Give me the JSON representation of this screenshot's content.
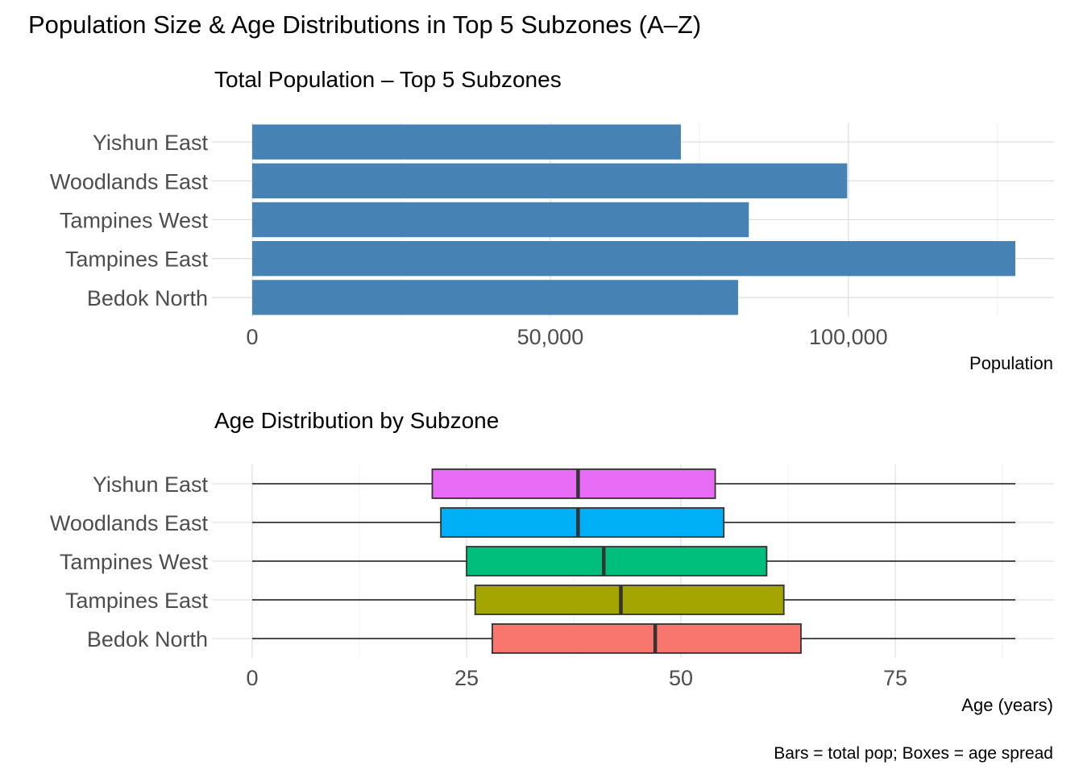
{
  "figure": {
    "title": "Population Size & Age Distributions in Top 5 Subzones (A–Z)",
    "caption": "Bars = total pop; Boxes = age spread"
  },
  "chart_data": [
    {
      "type": "bar",
      "orientation": "horizontal",
      "title": "Total Population – Top 5 Subzones",
      "xlabel": "Population",
      "ylabel": "",
      "categories": [
        "Bedok North",
        "Tampines East",
        "Tampines West",
        "Woodlands East",
        "Yishun East"
      ],
      "values": [
        81500,
        128000,
        83300,
        99800,
        71900
      ],
      "xlim": [
        0,
        128000
      ],
      "xticks": [
        0,
        50000,
        100000
      ],
      "xtick_labels": [
        "0",
        "50,000",
        "100,000"
      ],
      "bar_color": "#4682B4",
      "grid": true
    },
    {
      "type": "boxplot",
      "orientation": "horizontal",
      "title": "Age Distribution by Subzone",
      "xlabel": "Age (years)",
      "ylabel": "",
      "categories": [
        "Bedok North",
        "Tampines East",
        "Tampines West",
        "Woodlands East",
        "Yishun East"
      ],
      "boxes": [
        {
          "category": "Bedok North",
          "min": 0,
          "q1": 28,
          "median": 47,
          "q3": 64,
          "max": 89,
          "color": "#F8766D"
        },
        {
          "category": "Tampines East",
          "min": 0,
          "q1": 26,
          "median": 43,
          "q3": 62,
          "max": 89,
          "color": "#A3A500"
        },
        {
          "category": "Tampines West",
          "min": 0,
          "q1": 25,
          "median": 41,
          "q3": 60,
          "max": 89,
          "color": "#00BF7D"
        },
        {
          "category": "Woodlands East",
          "min": 0,
          "q1": 22,
          "median": 38,
          "q3": 55,
          "max": 89,
          "color": "#00B0F6"
        },
        {
          "category": "Yishun East",
          "min": 0,
          "q1": 21,
          "median": 38,
          "q3": 54,
          "max": 89,
          "color": "#E76BF3"
        }
      ],
      "xlim": [
        0,
        89
      ],
      "xticks": [
        0,
        25,
        50,
        75
      ],
      "xtick_labels": [
        "0",
        "25",
        "50",
        "75"
      ],
      "grid": true
    }
  ]
}
